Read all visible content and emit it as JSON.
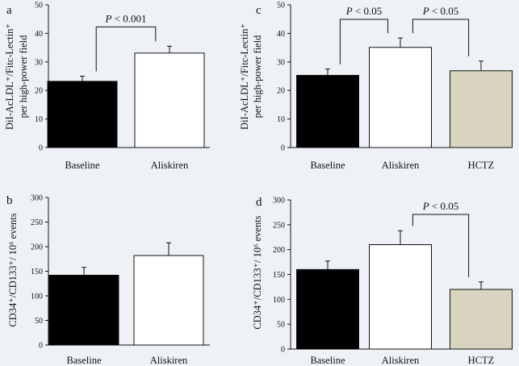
{
  "figure_background": "#eef2f6",
  "chart_data": [
    {
      "panel": "a",
      "type": "bar",
      "ylabel_line1": "DiI-AcLDL⁺/Fitc-Lectin⁺",
      "ylabel_line2": "per high-power field",
      "ylim": [
        0,
        50
      ],
      "yticks": [
        0,
        10,
        20,
        30,
        40,
        50
      ],
      "categories": [
        "Baseline",
        "Aliskiren"
      ],
      "values": [
        23.2,
        33.1
      ],
      "errors": [
        1.8,
        2.4
      ],
      "colors": [
        "#000000",
        "#ffffff",
        "#d8d4c0"
      ],
      "comparisons": [
        {
          "from": 0,
          "to": 1,
          "p_italic": "P",
          "p_rest": " < 0.001"
        }
      ]
    },
    {
      "panel": "b",
      "type": "bar",
      "ylabel_line1": "CD34⁺/CD133⁺/ 10⁶ events",
      "ylabel_line2": "",
      "ylim": [
        0,
        300
      ],
      "yticks": [
        0,
        50,
        100,
        150,
        200,
        250,
        300
      ],
      "categories": [
        "Baseline",
        "Aliskiren"
      ],
      "values": [
        142,
        182
      ],
      "errors": [
        16,
        26
      ],
      "colors": [
        "#000000",
        "#ffffff",
        "#d8d4c0"
      ],
      "comparisons": []
    },
    {
      "panel": "c",
      "type": "bar",
      "ylabel_line1": "DiI-AcLDL⁺/Fitc-Lectin⁺",
      "ylabel_line2": "per high-power field",
      "ylim": [
        0,
        50
      ],
      "yticks": [
        0,
        10,
        20,
        30,
        40,
        50
      ],
      "categories": [
        "Baseline",
        "Aliskiren",
        "HCTZ"
      ],
      "values": [
        25.3,
        35.1,
        26.9
      ],
      "errors": [
        2.2,
        3.3,
        3.4
      ],
      "colors": [
        "#000000",
        "#ffffff",
        "#d8d4c0"
      ],
      "comparisons": [
        {
          "from": 0,
          "to": 1,
          "p_italic": "P",
          "p_rest": " < 0.05"
        },
        {
          "from": 1,
          "to": 2,
          "p_italic": "P",
          "p_rest": " < 0.05"
        }
      ]
    },
    {
      "panel": "d",
      "type": "bar",
      "ylabel_line1": "CD34⁺/CD133⁺/ 10⁶ events",
      "ylabel_line2": "",
      "ylim": [
        0,
        300
      ],
      "yticks": [
        0,
        50,
        100,
        150,
        200,
        250,
        300
      ],
      "categories": [
        "Baseline",
        "Aliskiren",
        "HCTZ"
      ],
      "values": [
        160,
        210,
        120
      ],
      "errors": [
        17,
        28,
        15
      ],
      "colors": [
        "#000000",
        "#ffffff",
        "#d8d4c0"
      ],
      "comparisons": [
        {
          "from": 1,
          "to": 2,
          "p_italic": "P",
          "p_rest": " < 0.05"
        }
      ]
    }
  ]
}
